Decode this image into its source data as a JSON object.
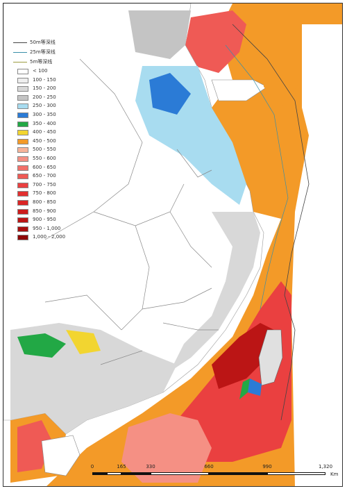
{
  "legend": {
    "lines": [
      {
        "label": "50m等深线",
        "color": "#444444"
      },
      {
        "label": "25m等深线",
        "color": "#3a8fa8"
      },
      {
        "label": "5m等深线",
        "color": "#9c9c40"
      }
    ],
    "classes": [
      {
        "label": "< 100",
        "color": "#ffffff"
      },
      {
        "label": "100 - 150",
        "color": "#eeeeee"
      },
      {
        "label": "150 - 200",
        "color": "#d8d8d8"
      },
      {
        "label": "200 - 250",
        "color": "#c4c4c4"
      },
      {
        "label": "250 - 300",
        "color": "#a8dcf0"
      },
      {
        "label": "300 - 350",
        "color": "#2b7bd6"
      },
      {
        "label": "350 - 400",
        "color": "#22a845"
      },
      {
        "label": "400 - 450",
        "color": "#f2d530"
      },
      {
        "label": "450 - 500",
        "color": "#f39a28"
      },
      {
        "label": "500 - 550",
        "color": "#f7b49a"
      },
      {
        "label": "550 - 600",
        "color": "#f59084"
      },
      {
        "label": "600 - 650",
        "color": "#f2706a"
      },
      {
        "label": "650 - 700",
        "color": "#ef5a55"
      },
      {
        "label": "700 - 750",
        "color": "#ea4040"
      },
      {
        "label": "750 - 800",
        "color": "#e23030"
      },
      {
        "label": "800 - 850",
        "color": "#da2525"
      },
      {
        "label": "850 - 900",
        "color": "#cc1c1c"
      },
      {
        "label": "900 - 950",
        "color": "#bb1515"
      },
      {
        "label": "950 - 1,000",
        "color": "#a80e0e"
      },
      {
        "label": "1,000 - 2,000",
        "color": "#8f0707"
      }
    ]
  },
  "scale": {
    "ticks": [
      "0",
      "165",
      "330",
      "660",
      "990",
      "1,320"
    ],
    "unit": "Km"
  }
}
